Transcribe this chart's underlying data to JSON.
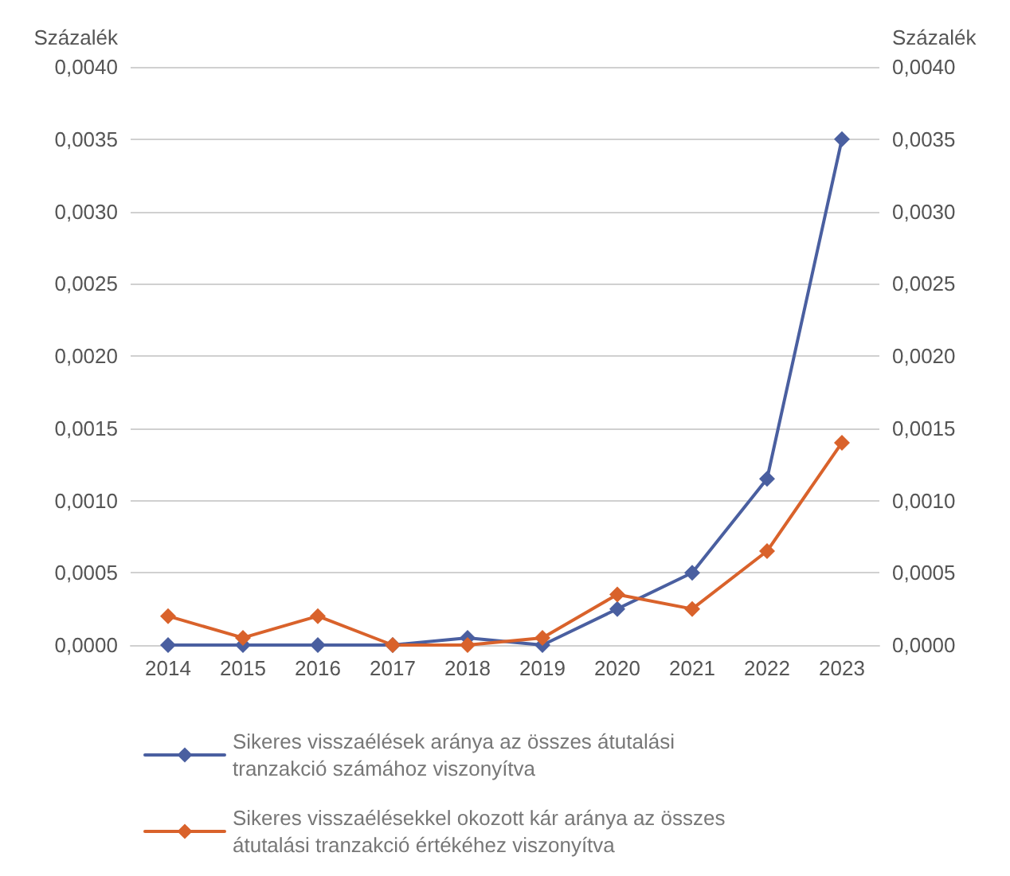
{
  "chart_data": {
    "type": "line",
    "ylabel": "Százalék",
    "y2label": "Százalék",
    "categories": [
      "2014",
      "2015",
      "2016",
      "2017",
      "2018",
      "2019",
      "2020",
      "2021",
      "2022",
      "2023"
    ],
    "series": [
      {
        "name": "Sikeres visszaélések aránya az összes átutalási tranzakció számához viszonyítva",
        "color": "#4a5fa0",
        "values": [
          0.0,
          0.0,
          0.0,
          0.0,
          5e-05,
          0.0,
          0.00025,
          0.0005,
          0.00115,
          0.0035
        ]
      },
      {
        "name": "Sikeres visszaélésekkel okozott kár aránya az összes átutalási tranzakció értékéhez viszonyítva",
        "color": "#d9622b",
        "values": [
          0.0002,
          5e-05,
          0.0002,
          0.0,
          0.0,
          5e-05,
          0.00035,
          0.00025,
          0.00065,
          0.0014
        ]
      }
    ],
    "ylim": [
      0,
      0.004
    ],
    "yticks": [
      {
        "value": 0,
        "label": "0,0000"
      },
      {
        "value": 0.0005,
        "label": "0,0005"
      },
      {
        "value": 0.001,
        "label": "0,0010"
      },
      {
        "value": 0.0015,
        "label": "0,0015"
      },
      {
        "value": 0.002,
        "label": "0,0020"
      },
      {
        "value": 0.0025,
        "label": "0,0025"
      },
      {
        "value": 0.003,
        "label": "0,0030"
      },
      {
        "value": 0.0035,
        "label": "0,0035"
      },
      {
        "value": 0.004,
        "label": "0,0040"
      }
    ],
    "y2lim": [
      0,
      0.004
    ],
    "y2ticks": [
      {
        "value": 0,
        "label": "0,0000"
      },
      {
        "value": 0.0005,
        "label": "0,0005"
      },
      {
        "value": 0.001,
        "label": "0,0010"
      },
      {
        "value": 0.0015,
        "label": "0,0015"
      },
      {
        "value": 0.002,
        "label": "0,0020"
      },
      {
        "value": 0.0025,
        "label": "0,0025"
      },
      {
        "value": 0.003,
        "label": "0,0030"
      },
      {
        "value": 0.0035,
        "label": "0,0035"
      },
      {
        "value": 0.004,
        "label": "0,0040"
      }
    ],
    "grid": "y",
    "legend": "bottom",
    "marker": "diamond",
    "line_style": "solid"
  }
}
